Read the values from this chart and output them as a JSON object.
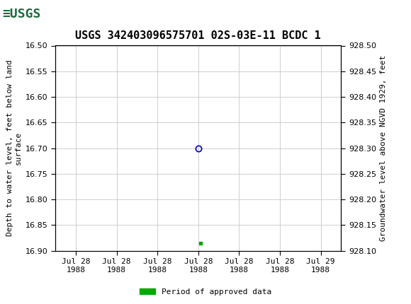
{
  "title": "USGS 342403096575701 02S-03E-11 BCDC 1",
  "ylabel_left": "Depth to water level, feet below land\nsurface",
  "ylabel_right": "Groundwater level above NGVD 1929, feet",
  "ylim_left": [
    16.9,
    16.5
  ],
  "ylim_right": [
    928.1,
    928.5
  ],
  "yticks_left": [
    16.5,
    16.55,
    16.6,
    16.65,
    16.7,
    16.75,
    16.8,
    16.85,
    16.9
  ],
  "yticks_right": [
    928.5,
    928.45,
    928.4,
    928.35,
    928.3,
    928.25,
    928.2,
    928.15,
    928.1
  ],
  "point_x": 3.0,
  "point_y_depth": 16.7,
  "square_x": 3.05,
  "square_y_depth": 16.885,
  "point_color": "#0000bb",
  "square_color": "#00aa00",
  "grid_color": "#c8c8c8",
  "background_color": "#ffffff",
  "header_bg_color": "#1a6b3c",
  "header_text_color": "#ffffff",
  "font_color": "#000000",
  "title_fontsize": 11,
  "axis_label_fontsize": 8,
  "tick_fontsize": 8,
  "legend_label": "Period of approved data",
  "legend_color": "#00aa00",
  "xlabel_ticks": [
    "Jul 28\n1988",
    "Jul 28\n1988",
    "Jul 28\n1988",
    "Jul 28\n1988",
    "Jul 28\n1988",
    "Jul 28\n1988",
    "Jul 29\n1988"
  ],
  "x_positions": [
    0,
    1,
    2,
    3,
    4,
    5,
    6
  ],
  "xlim": [
    -0.5,
    6.5
  ]
}
